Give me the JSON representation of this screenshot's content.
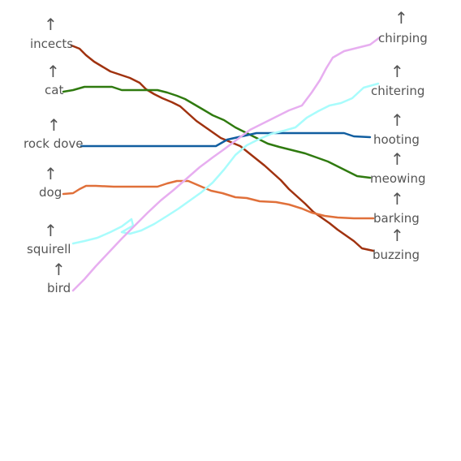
{
  "left_labels": [
    {
      "id": "insects",
      "text": "incects",
      "arrow": "↑"
    },
    {
      "id": "cat",
      "text": "cat",
      "arrow": "↑"
    },
    {
      "id": "rock-dove",
      "text": "rock dove",
      "arrow": "↑"
    },
    {
      "id": "dog",
      "text": "dog",
      "arrow": "↑"
    },
    {
      "id": "squirrel",
      "text": "squirell",
      "arrow": "↑"
    },
    {
      "id": "bird",
      "text": "bird",
      "arrow": "↑"
    }
  ],
  "right_labels": [
    {
      "id": "chirping",
      "text": "chirping",
      "arrow": "↑"
    },
    {
      "id": "chittering",
      "text": "chitering",
      "arrow": "↑"
    },
    {
      "id": "hooting",
      "text": "hooting",
      "arrow": "↑"
    },
    {
      "id": "meowing",
      "text": "meowing",
      "arrow": "↑"
    },
    {
      "id": "barking",
      "text": "barking",
      "arrow": "↑"
    },
    {
      "id": "buzzing",
      "text": "buzzing",
      "arrow": "↑"
    }
  ],
  "connections": [
    {
      "from": "incects",
      "to": "buzzing",
      "color": "#a0320f"
    },
    {
      "from": "cat",
      "to": "meowing",
      "color": "#2f7a0f"
    },
    {
      "from": "rock dove",
      "to": "hooting",
      "color": "#115ea0"
    },
    {
      "from": "dog",
      "to": "barking",
      "color": "#e0703a"
    },
    {
      "from": "squirell",
      "to": "chitering",
      "color": "#a8fcfc"
    },
    {
      "from": "bird",
      "to": "chirping",
      "color": "#e7aef0"
    }
  ]
}
